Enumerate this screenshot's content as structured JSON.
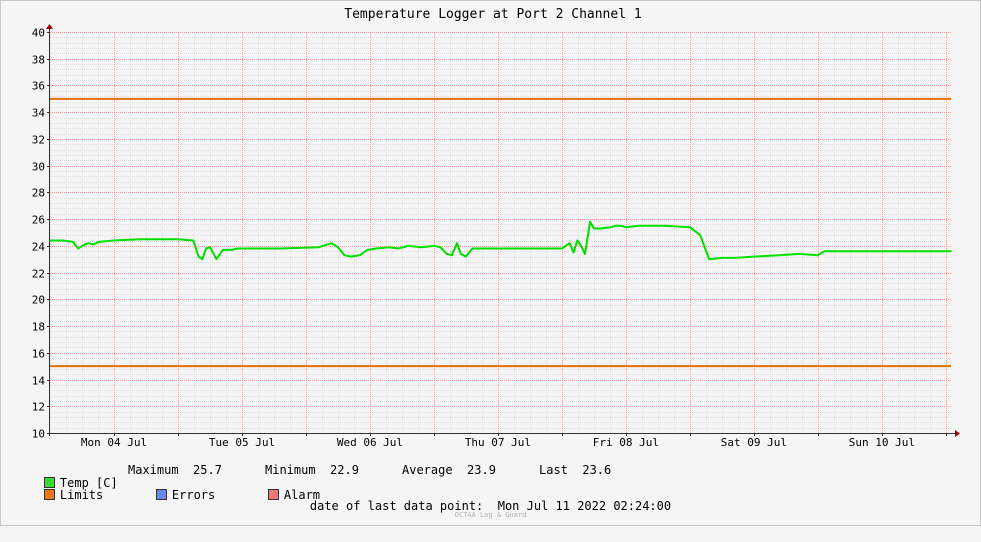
{
  "chart_data": {
    "type": "line",
    "title": "Temperature Logger at Port 2 Channel 1",
    "ylim": [
      10,
      40
    ],
    "y_ticks": [
      "10",
      "12",
      "14",
      "16",
      "18",
      "20",
      "22",
      "24",
      "26",
      "28",
      "30",
      "32",
      "34",
      "36",
      "38",
      "40"
    ],
    "x_ticks": [
      "Mon 04 Jul",
      "Tue 05 Jul",
      "Wed 06 Jul",
      "Thu 07 Jul",
      "Fri 08 Jul",
      "Sat 09 Jul",
      "Sun 10 Jul"
    ],
    "x_range_days": [
      0,
      7.04
    ],
    "grid": true,
    "legend_placement": "bottom",
    "series": [
      {
        "name": "Temp [C]",
        "color": "#00e000",
        "x_days": [
          0.0,
          0.1,
          0.18,
          0.22,
          0.27,
          0.3,
          0.34,
          0.38,
          0.5,
          0.7,
          1.0,
          1.12,
          1.16,
          1.19,
          1.22,
          1.25,
          1.3,
          1.35,
          1.38,
          1.42,
          1.47,
          1.55,
          1.8,
          2.1,
          2.2,
          2.25,
          2.3,
          2.35,
          2.42,
          2.48,
          2.55,
          2.65,
          2.72,
          2.8,
          2.9,
          3.0,
          3.05,
          3.1,
          3.14,
          3.18,
          3.21,
          3.25,
          3.3,
          3.35,
          3.4,
          3.5,
          3.7,
          4.0,
          4.06,
          4.09,
          4.12,
          4.15,
          4.18,
          4.22,
          4.25,
          4.3,
          4.38,
          4.42,
          4.46,
          4.5,
          4.6,
          4.8,
          5.0,
          5.08,
          5.15,
          5.25,
          5.35,
          5.5,
          5.7,
          5.85,
          6.0,
          6.05,
          6.1,
          6.3,
          6.6,
          7.04
        ],
        "values": [
          24.4,
          24.4,
          24.3,
          23.8,
          24.1,
          24.2,
          24.1,
          24.3,
          24.4,
          24.5,
          24.5,
          24.4,
          23.2,
          23.0,
          23.8,
          23.9,
          23.0,
          23.7,
          23.7,
          23.7,
          23.8,
          23.8,
          23.8,
          23.9,
          24.2,
          23.9,
          23.3,
          23.2,
          23.3,
          23.7,
          23.8,
          23.9,
          23.8,
          24.0,
          23.9,
          24.0,
          23.9,
          23.4,
          23.3,
          24.2,
          23.4,
          23.2,
          23.8,
          23.8,
          23.8,
          23.8,
          23.8,
          23.8,
          24.2,
          23.5,
          24.4,
          24.0,
          23.4,
          25.8,
          25.3,
          25.3,
          25.4,
          25.5,
          25.5,
          25.4,
          25.5,
          25.5,
          25.4,
          24.8,
          23.0,
          23.1,
          23.1,
          23.2,
          23.3,
          23.4,
          23.3,
          23.6,
          23.6,
          23.6,
          23.6,
          23.6
        ]
      },
      {
        "name": "Limits",
        "color": "#e07000",
        "upper": 35,
        "lower": 15
      }
    ]
  },
  "legend": {
    "temp_label": "Temp [C]",
    "max_label": "Maximum",
    "max_value": "25.7",
    "min_label": "Minimum",
    "min_value": "22.9",
    "avg_label": "Average",
    "avg_value": "23.9",
    "last_label": "Last",
    "last_value": "23.6",
    "limits_label": "Limits",
    "errors_label": "Errors",
    "alarm_label": "Alarm",
    "temp_color": "#33dd33",
    "limits_color": "#ee7711",
    "errors_color": "#6688ee",
    "alarm_color": "#ee7777"
  },
  "footer": {
    "date_label": "date of last data point:",
    "date_value": "Mon Jul 11 2022 02:24:00",
    "brand": "OCTAA Log & Guard"
  }
}
